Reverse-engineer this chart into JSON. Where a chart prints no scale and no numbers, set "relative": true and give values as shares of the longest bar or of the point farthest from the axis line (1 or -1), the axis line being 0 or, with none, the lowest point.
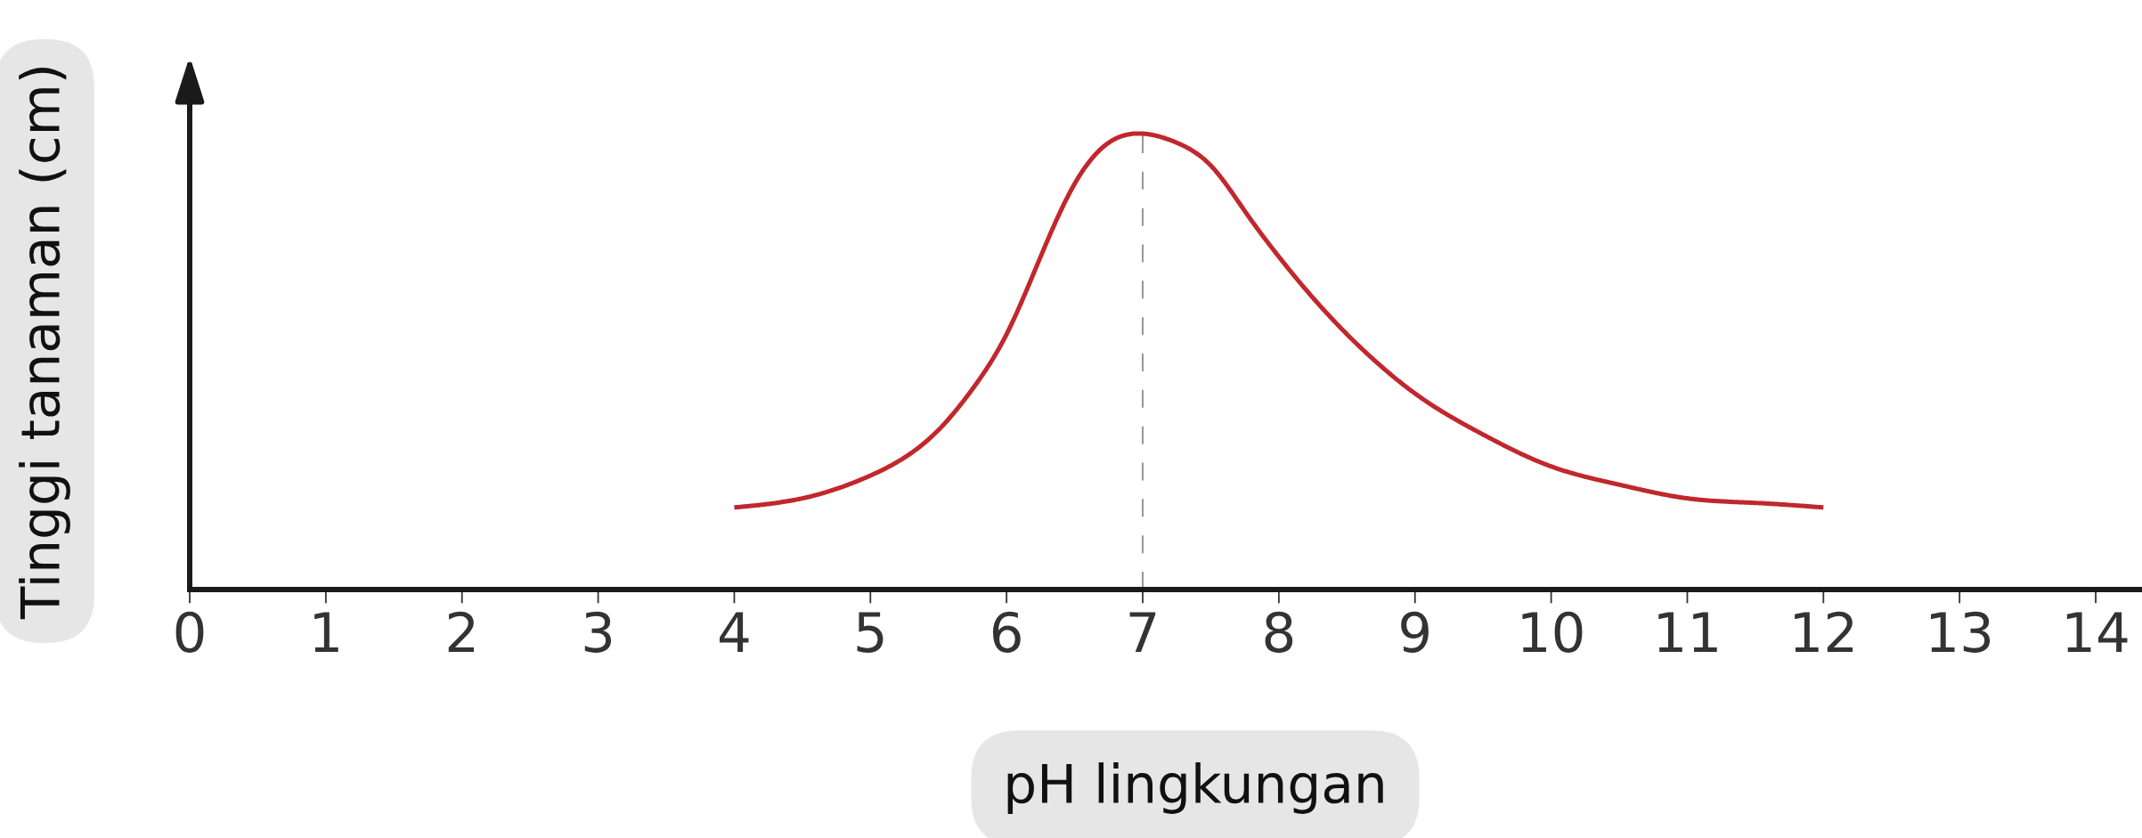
{
  "chart_data": {
    "type": "line",
    "xlabel": "pH lingkungan",
    "ylabel": "Tinggi tanaman (cm)",
    "relative": true,
    "tick_labels": "x",
    "x": [
      4,
      4.5,
      5,
      5.5,
      5.75,
      6,
      6.25,
      6.5,
      6.75,
      7,
      7.25,
      7.5,
      7.75,
      8,
      8.25,
      8.5,
      8.75,
      9,
      9.5,
      10,
      10.5,
      11,
      11.5,
      12
    ],
    "series": [
      {
        "color": "#c1272d",
        "values": [
          0.18,
          0.2,
          0.25,
          0.35,
          0.44,
          0.56,
          0.73,
          0.89,
          0.98,
          1.0,
          0.98,
          0.93,
          0.83,
          0.73,
          0.64,
          0.56,
          0.49,
          0.43,
          0.34,
          0.27,
          0.23,
          0.2,
          0.19,
          0.18
        ]
      }
    ],
    "xlim": [
      0,
      14.34
    ],
    "xticks": [
      0,
      1,
      2,
      3,
      4,
      5,
      6,
      7,
      8,
      9,
      10,
      11,
      12,
      13,
      14
    ],
    "ref_lines": [
      {
        "axis": "x",
        "value": 7,
        "color": "#999999",
        "line_style": "dashed"
      }
    ]
  }
}
